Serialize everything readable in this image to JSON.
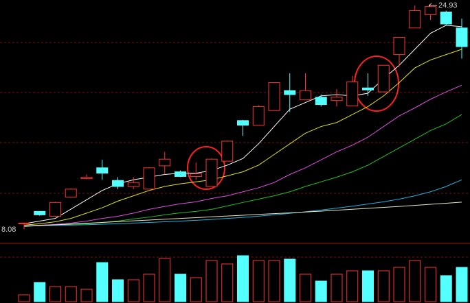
{
  "chart_data": {
    "type": "candlestick",
    "open": [
      8.5,
      9.43,
      9.06,
      10.5,
      11.9,
      12.7,
      11.75,
      11.3,
      11.1,
      12.85,
      12.4,
      12.05,
      11.3,
      13.2,
      16.25,
      15.9,
      17.0,
      18.5,
      17.8,
      18.0,
      17.75,
      17.35,
      18.7,
      18.4,
      21.2,
      23.2,
      24.2,
      24.4,
      23.2
    ],
    "high": [
      8.6,
      9.45,
      10.15,
      11.15,
      12.2,
      13.3,
      12.0,
      12.0,
      12.75,
      13.9,
      12.5,
      13.1,
      13.4,
      14.75,
      16.3,
      17.4,
      19.1,
      19.8,
      19.8,
      18.2,
      18.6,
      19.6,
      19.8,
      20.4,
      22.5,
      24.9,
      24.93,
      24.5,
      23.9
    ],
    "low": [
      8.08,
      9.1,
      9.0,
      10.45,
      11.85,
      11.8,
      11.1,
      11.1,
      11.1,
      12.2,
      12.0,
      11.8,
      11.3,
      13.2,
      15.1,
      15.9,
      17.0,
      16.9,
      17.8,
      17.3,
      17.3,
      17.35,
      18.1,
      18.4,
      20.3,
      23.2,
      23.8,
      23.4,
      20.9
    ],
    "close": [
      8.55,
      9.17,
      10.1,
      11.1,
      12.0,
      12.3,
      11.3,
      11.6,
      12.7,
      13.35,
      12.05,
      12.25,
      13.35,
      14.7,
      15.9,
      17.3,
      19.1,
      18.2,
      18.5,
      17.45,
      18.0,
      19.15,
      18.55,
      20.4,
      22.5,
      24.5,
      24.8,
      23.5,
      21.8
    ],
    "ylim": [
      7.8,
      25.3
    ],
    "up_color": "#ff3232",
    "down_color": "#54ffff",
    "max_price": 24.93,
    "min_price": 8.08,
    "moving_averages": [
      {
        "color": "#ffffff",
        "values": [
          8.5,
          8.7,
          8.9,
          9.6,
          10.3,
          11.0,
          11.5,
          11.8,
          12.0,
          12.2,
          12.3,
          12.3,
          12.5,
          12.9,
          13.4,
          14.5,
          15.8,
          17.1,
          17.6,
          18.1,
          18.2,
          18.1,
          18.3,
          19.4,
          20.4,
          21.6,
          22.8,
          23.4,
          23.3
        ]
      },
      {
        "color": "#e6e600",
        "values": [
          8.4,
          8.5,
          8.65,
          8.9,
          9.3,
          9.7,
          10.2,
          10.6,
          11.0,
          11.3,
          11.5,
          11.65,
          11.8,
          12.1,
          12.4,
          12.9,
          13.7,
          14.5,
          15.3,
          15.8,
          16.1,
          16.7,
          17.3,
          18.1,
          19.1,
          20.2,
          20.8,
          21.2,
          21.6
        ]
      },
      {
        "color": "#e04fe0",
        "values": [
          8.34,
          8.4,
          8.45,
          8.55,
          8.7,
          8.9,
          9.06,
          9.3,
          9.58,
          9.8,
          10.0,
          10.15,
          10.4,
          10.6,
          10.9,
          11.2,
          11.6,
          12.2,
          12.7,
          13.3,
          13.9,
          14.4,
          15.0,
          15.8,
          16.6,
          17.2,
          17.85,
          18.4,
          18.9
        ]
      },
      {
        "color": "#22c322",
        "values": [
          8.34,
          8.34,
          8.4,
          8.45,
          8.5,
          8.6,
          8.7,
          8.86,
          9.0,
          9.17,
          9.32,
          9.43,
          9.58,
          9.84,
          10.1,
          10.35,
          10.6,
          10.9,
          11.3,
          11.65,
          12.0,
          12.4,
          12.9,
          13.55,
          14.2,
          14.85,
          15.5,
          16.0,
          16.7
        ]
      },
      {
        "color": "#1fb4e0",
        "values": [
          8.34,
          8.36,
          8.38,
          8.4,
          8.43,
          8.47,
          8.5,
          8.55,
          8.6,
          8.65,
          8.7,
          8.76,
          8.82,
          8.9,
          8.98,
          9.07,
          9.17,
          9.28,
          9.4,
          9.53,
          9.67,
          9.82,
          9.98,
          10.15,
          10.35,
          10.6,
          10.9,
          11.3,
          11.8
        ]
      },
      {
        "color": "#e8e8c8",
        "values": [
          8.3,
          8.36,
          8.42,
          8.48,
          8.54,
          8.6,
          8.66,
          8.72,
          8.78,
          8.84,
          8.9,
          8.96,
          9.02,
          9.08,
          9.14,
          9.2,
          9.26,
          9.32,
          9.38,
          9.45,
          9.52,
          9.59,
          9.66,
          9.73,
          9.8,
          9.88,
          9.96,
          10.04,
          10.12
        ]
      }
    ],
    "volume": {
      "values": [
        10,
        28,
        22,
        22,
        18,
        57,
        32,
        32,
        40,
        63,
        40,
        35,
        60,
        55,
        67,
        60,
        60,
        62,
        40,
        30,
        40,
        45,
        45,
        45,
        50,
        60,
        50,
        38,
        50
      ],
      "ylim": [
        0,
        70
      ]
    }
  }
}
